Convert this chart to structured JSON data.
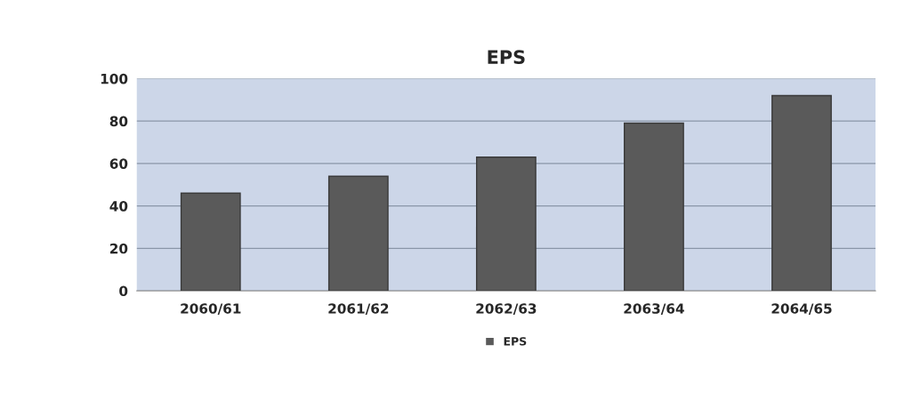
{
  "chart_data": {
    "type": "bar",
    "title": "EPS",
    "categories": [
      "2060/61",
      "2061/62",
      "2062/63",
      "2063/64",
      "2064/65"
    ],
    "series": [
      {
        "name": "EPS",
        "color": "#5a5a5a",
        "values": [
          46,
          54,
          63,
          79,
          92
        ]
      }
    ],
    "ylim": [
      0,
      100
    ],
    "yticks": [
      0,
      20,
      40,
      60,
      80,
      100
    ],
    "grid": "y",
    "legend": "bottom"
  }
}
